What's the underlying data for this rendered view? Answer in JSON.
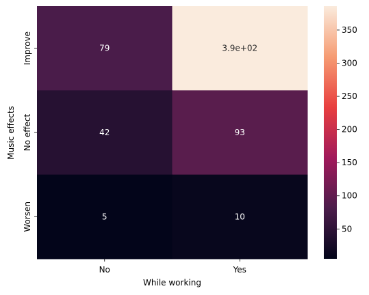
{
  "chart_data": {
    "type": "heatmap",
    "title": "",
    "xlabel": "While working",
    "ylabel": "Music effects",
    "x_categories": [
      "No",
      "Yes"
    ],
    "y_categories": [
      "Improve",
      "No effect",
      "Worsen"
    ],
    "values": [
      [
        79,
        386
      ],
      [
        42,
        93
      ],
      [
        5,
        10
      ]
    ],
    "annotations": [
      [
        "79",
        "3.9e+02"
      ],
      [
        "42",
        "93"
      ],
      [
        "5",
        "10"
      ]
    ],
    "colorbar": {
      "range": [
        5,
        386
      ],
      "ticks": [
        50,
        100,
        150,
        200,
        250,
        300,
        350
      ],
      "tick_labels": [
        "50",
        "100",
        "150",
        "200",
        "250",
        "300",
        "350"
      ]
    },
    "colormap_stops": [
      "#03051a",
      "#4c1d4b",
      "#a11a5b",
      "#e83f3f",
      "#f69c73",
      "#faebdd"
    ],
    "grid": false
  }
}
